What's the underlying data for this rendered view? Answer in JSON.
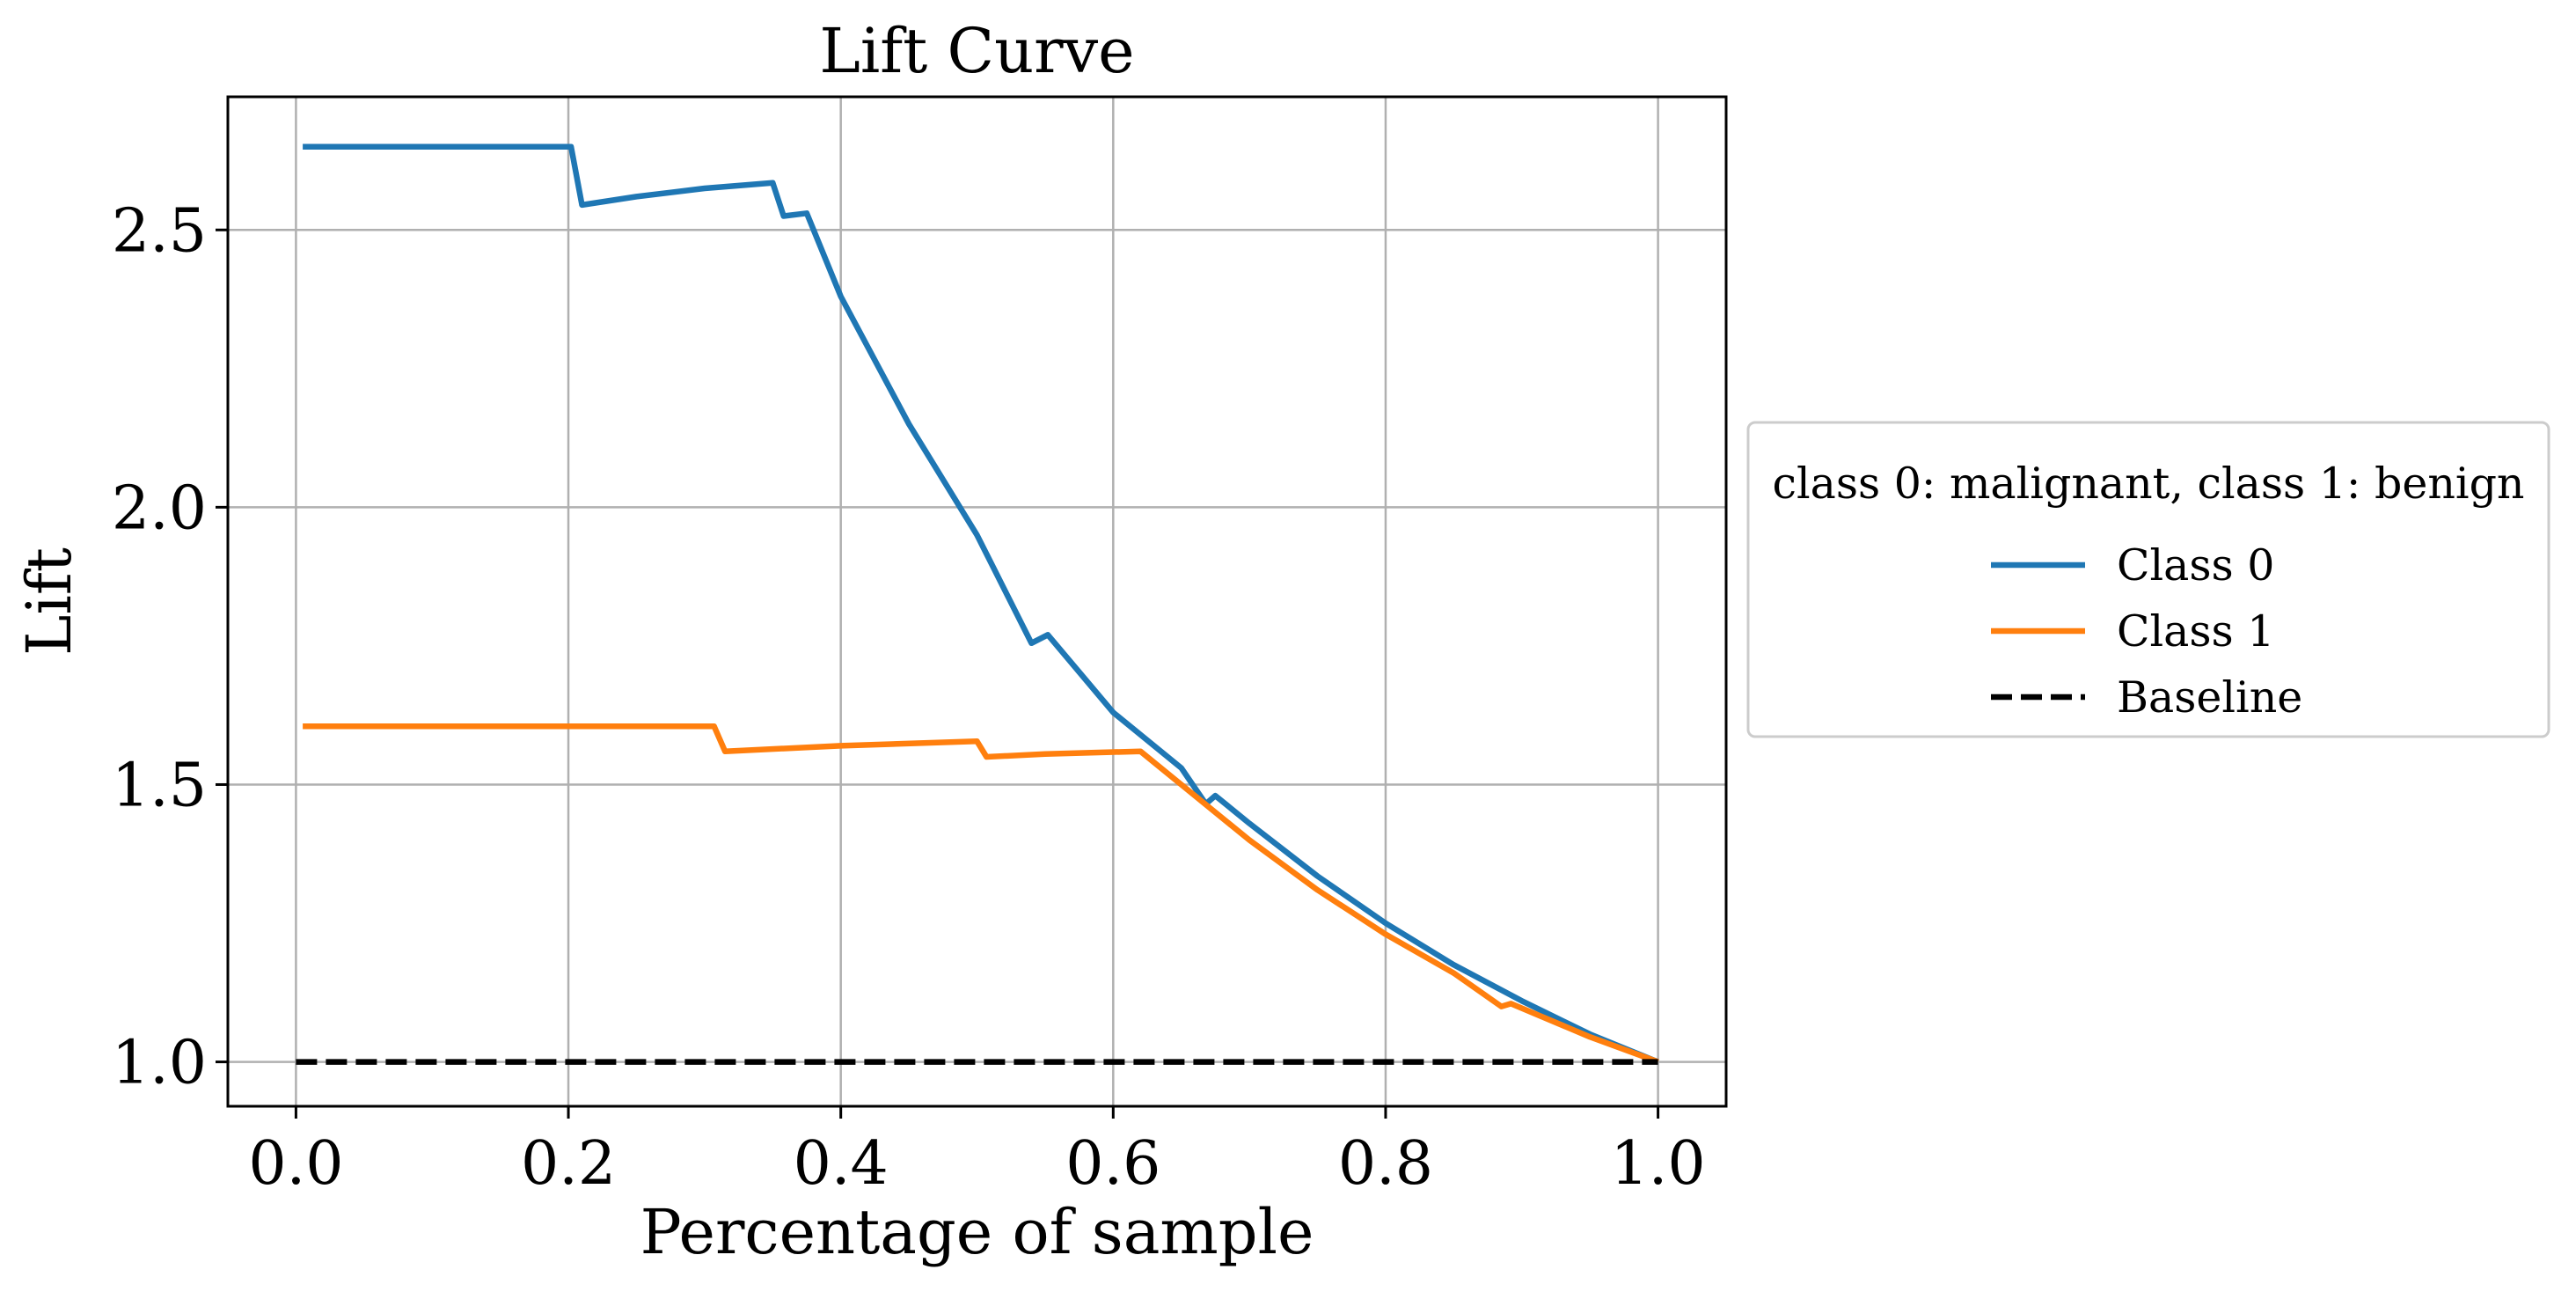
{
  "chart_data": {
    "type": "line",
    "title": "Lift Curve",
    "xlabel": "Percentage of sample",
    "ylabel": "Lift",
    "xlim": [
      -0.05,
      1.05
    ],
    "ylim": [
      0.92,
      2.74
    ],
    "x_ticks": [
      0.0,
      0.2,
      0.4,
      0.6,
      0.8,
      1.0
    ],
    "x_tick_labels": [
      "0.0",
      "0.2",
      "0.4",
      "0.6",
      "0.8",
      "1.0"
    ],
    "y_ticks": [
      1.0,
      1.5,
      2.0,
      2.5
    ],
    "y_tick_labels": [
      "1.0",
      "1.5",
      "2.0",
      "2.5"
    ],
    "grid": true,
    "legend": {
      "title": "class 0: malignant, class 1: benign",
      "placement": "outside right",
      "entries": [
        "Class 0",
        "Class 1",
        "Baseline"
      ]
    },
    "series": [
      {
        "name": "Class 0",
        "color": "#1f77b4",
        "style": "solid",
        "points": [
          [
            0.005,
            2.65
          ],
          [
            0.2,
            2.65
          ],
          [
            0.202,
            2.65
          ],
          [
            0.21,
            2.545
          ],
          [
            0.25,
            2.56
          ],
          [
            0.3,
            2.575
          ],
          [
            0.35,
            2.585
          ],
          [
            0.358,
            2.525
          ],
          [
            0.375,
            2.53
          ],
          [
            0.4,
            2.38
          ],
          [
            0.45,
            2.15
          ],
          [
            0.5,
            1.95
          ],
          [
            0.54,
            1.755
          ],
          [
            0.552,
            1.77
          ],
          [
            0.6,
            1.63
          ],
          [
            0.65,
            1.53
          ],
          [
            0.668,
            1.465
          ],
          [
            0.675,
            1.48
          ],
          [
            0.7,
            1.43
          ],
          [
            0.75,
            1.335
          ],
          [
            0.8,
            1.25
          ],
          [
            0.85,
            1.175
          ],
          [
            0.9,
            1.11
          ],
          [
            0.95,
            1.05
          ],
          [
            1.0,
            1.0
          ]
        ]
      },
      {
        "name": "Class 1",
        "color": "#ff7f0e",
        "style": "solid",
        "points": [
          [
            0.005,
            1.605
          ],
          [
            0.3,
            1.605
          ],
          [
            0.307,
            1.605
          ],
          [
            0.315,
            1.56
          ],
          [
            0.4,
            1.57
          ],
          [
            0.5,
            1.578
          ],
          [
            0.507,
            1.55
          ],
          [
            0.55,
            1.555
          ],
          [
            0.62,
            1.56
          ],
          [
            0.65,
            1.5
          ],
          [
            0.7,
            1.4
          ],
          [
            0.75,
            1.31
          ],
          [
            0.8,
            1.23
          ],
          [
            0.85,
            1.16
          ],
          [
            0.885,
            1.1
          ],
          [
            0.892,
            1.105
          ],
          [
            0.95,
            1.045
          ],
          [
            1.0,
            1.0
          ]
        ]
      },
      {
        "name": "Baseline",
        "color": "#000000",
        "style": "dashed",
        "points": [
          [
            0.0,
            1.0
          ],
          [
            1.0,
            1.0
          ]
        ]
      }
    ]
  }
}
